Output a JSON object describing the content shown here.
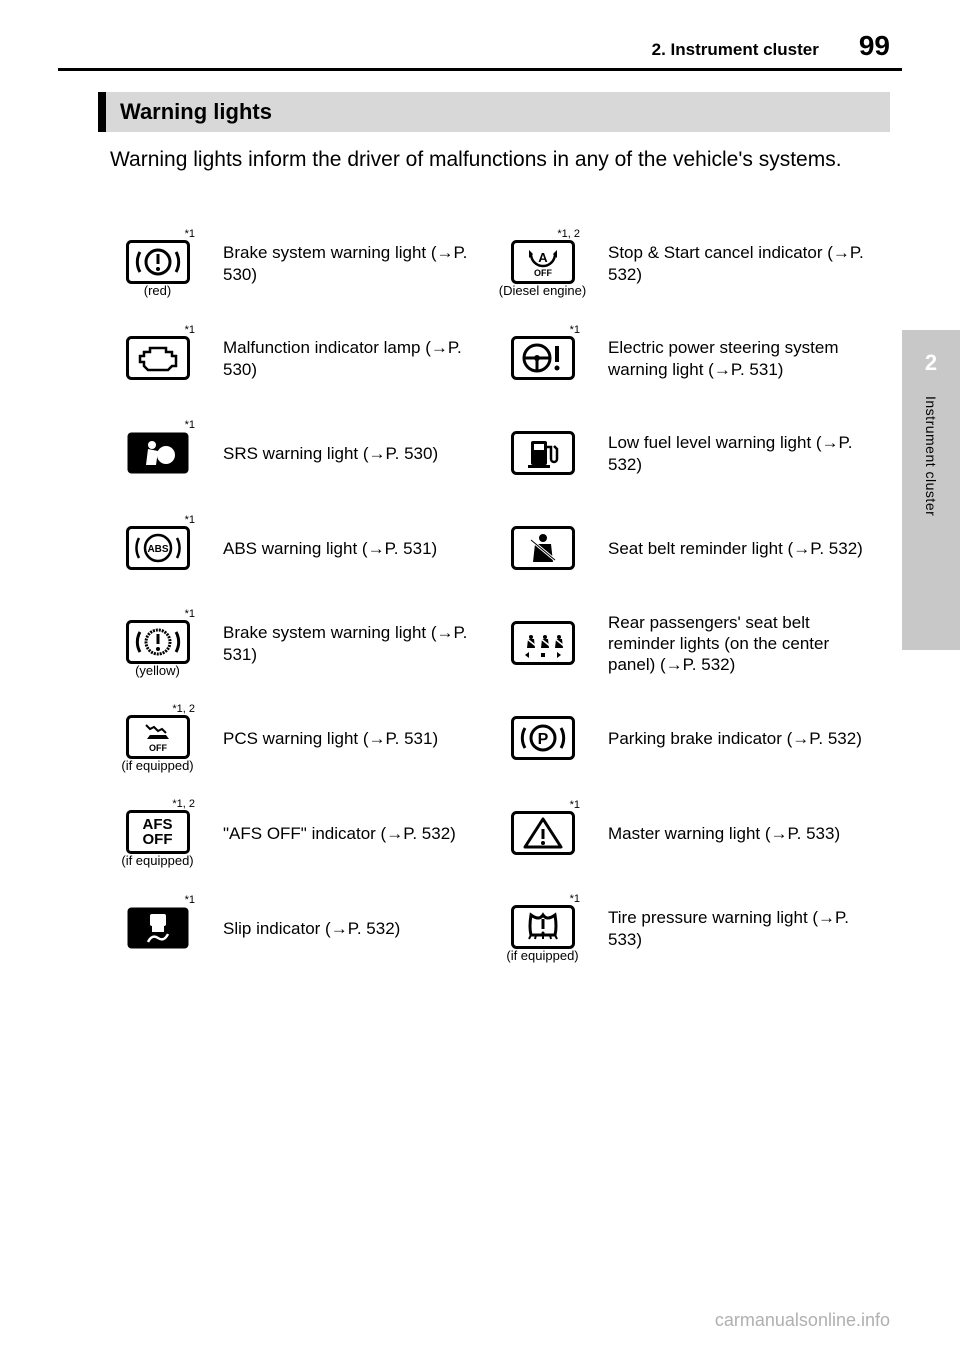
{
  "header": {
    "sub": "2. Instrument cluster",
    "page": "99"
  },
  "sideTab": {
    "num": "2",
    "text": "Instrument cluster"
  },
  "sectionTitle": "Warning lights",
  "intro": "Warning lights inform the driver of malfunctions in any of the vehicle's systems.",
  "arrow": "→",
  "left": [
    {
      "sup": "*1",
      "sub": "(red)",
      "icon": "brake-red",
      "desc": "Brake system warning light (→P. 530)"
    },
    {
      "sup": "*1",
      "sub": "",
      "icon": "engine",
      "desc": "Malfunction indicator lamp (→P. 530)"
    },
    {
      "sup": "*1",
      "sub": "",
      "icon": "srs",
      "desc": "SRS warning light (→P. 530)"
    },
    {
      "sup": "*1",
      "sub": "",
      "icon": "abs",
      "desc": "ABS warning light (→P. 531)"
    },
    {
      "sup": "*1",
      "sub": "(yellow)",
      "icon": "brake-yel",
      "desc": "Brake system warning light (→P. 531)"
    },
    {
      "sup": "*1, 2",
      "sub": "(if equipped)",
      "icon": "pcs",
      "desc": "PCS warning light (→P. 531)"
    },
    {
      "sup": "*1, 2",
      "sub": "(if equipped)",
      "icon": "afs",
      "desc": "\"AFS OFF\" indicator (→P. 532)"
    },
    {
      "sup": "*1",
      "sub": "",
      "icon": "slip",
      "desc": "Slip indicator (→P. 532)"
    }
  ],
  "right": [
    {
      "sup": "*1, 2",
      "sub": "(Diesel engine)",
      "icon": "stopstart",
      "desc": "Stop & Start cancel indicator (→P. 532)"
    },
    {
      "sup": "*1",
      "sub": "",
      "icon": "eps",
      "desc": "Electric power steering system warning light (→P. 531)"
    },
    {
      "sup": "",
      "sub": "",
      "icon": "fuel",
      "desc": "Low fuel level warning light (→P. 532)"
    },
    {
      "sup": "",
      "sub": "",
      "icon": "seatbelt",
      "desc": "Seat belt reminder light (→P. 532)"
    },
    {
      "sup": "",
      "sub": "",
      "icon": "rearbelt",
      "desc": "Rear passengers' seat belt reminder lights (on the center panel) (→P. 532)"
    },
    {
      "sup": "",
      "sub": "",
      "icon": "parking",
      "desc": "Parking brake indicator (→P. 532)"
    },
    {
      "sup": "*1",
      "sub": "",
      "icon": "master",
      "desc": "Master warning light (→P. 533)"
    },
    {
      "sup": "*1",
      "sub": "(if equipped)",
      "icon": "tpms",
      "desc": "Tire pressure warning light (→P. 533)"
    }
  ],
  "watermark": "carmanualsonline.info"
}
